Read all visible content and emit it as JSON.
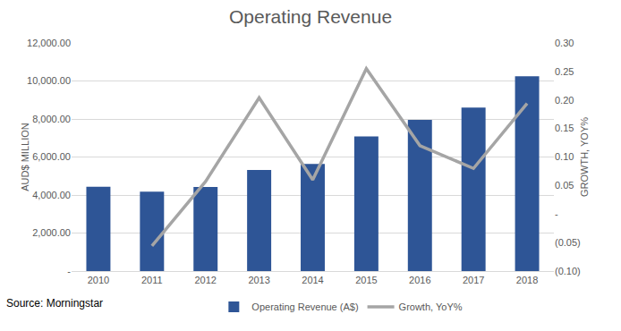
{
  "chart_data": {
    "type": "bar",
    "title": "Operating Revenue",
    "y_label": "AUD$ MILLION",
    "y2_label": "GROWTH, YOY%",
    "annotations": [
      "Source: Morningstar"
    ],
    "categories": [
      "2010",
      "2011",
      "2012",
      "2013",
      "2014",
      "2015",
      "2016",
      "2017",
      "2018"
    ],
    "series": [
      {
        "name": "Operating Revenue (A$)",
        "type": "bar",
        "color": "#2E5596",
        "values": [
          4430,
          4180,
          4420,
          5320,
          5640,
          7080,
          7950,
          8600,
          10250
        ]
      },
      {
        "name": "Growth, YoY%",
        "type": "line",
        "axis": "y2",
        "color": "#A5A5A5",
        "values": [
          null,
          -0.056,
          0.057,
          0.204,
          0.06,
          0.255,
          0.12,
          0.08,
          0.194
        ]
      }
    ],
    "ylim": [
      0,
      12000
    ],
    "yticks": [
      {
        "value": 0,
        "label": "-"
      },
      {
        "value": 2000,
        "label": "2,000.00"
      },
      {
        "value": 4000,
        "label": "4,000.00"
      },
      {
        "value": 6000,
        "label": "6,000.00"
      },
      {
        "value": 8000,
        "label": "8,000.00"
      },
      {
        "value": 10000,
        "label": "10,000.00"
      },
      {
        "value": 12000,
        "label": "12,000.00"
      }
    ],
    "y2lim": [
      -0.1,
      0.3
    ],
    "y2ticks": [
      {
        "value": -0.1,
        "label": "(0.10)"
      },
      {
        "value": -0.05,
        "label": "(0.05)"
      },
      {
        "value": 0,
        "label": "-"
      },
      {
        "value": 0.05,
        "label": "0.05"
      },
      {
        "value": 0.1,
        "label": "0.10"
      },
      {
        "value": 0.15,
        "label": "0.15"
      },
      {
        "value": 0.2,
        "label": "0.20"
      },
      {
        "value": 0.25,
        "label": "0.25"
      },
      {
        "value": 0.3,
        "label": "0.30"
      }
    ],
    "grid": true,
    "legend": "bottom"
  }
}
